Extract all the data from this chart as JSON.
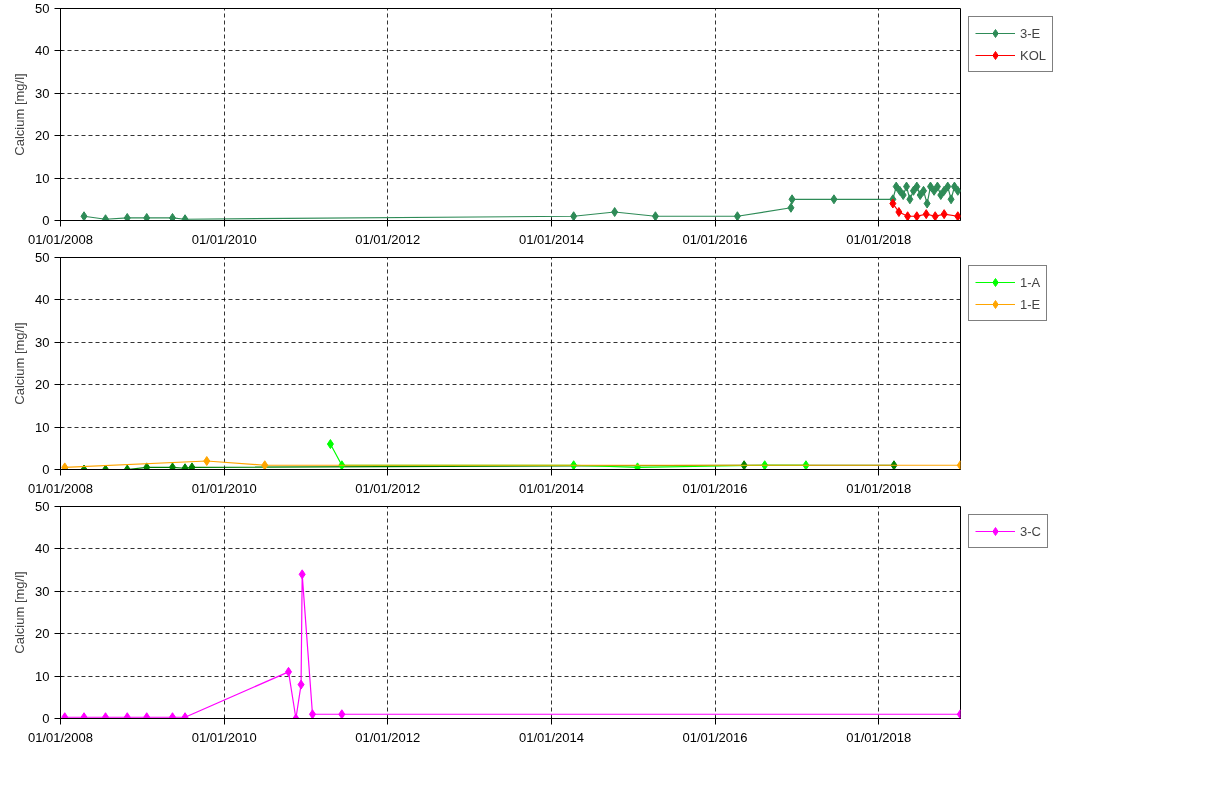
{
  "chart_data": [
    {
      "type": "line",
      "ylabel": "Calcium [mg/l]",
      "marker": "diamond",
      "grid": true,
      "legend": "right",
      "xlim": [
        "2008-01-01",
        "2019-01-01"
      ],
      "ylim": [
        0,
        50
      ],
      "yticks": [
        0,
        10,
        20,
        30,
        40,
        50
      ],
      "xticks": [
        {
          "value": "2008-01-01",
          "label": "01/01/2008"
        },
        {
          "value": "2010-01-01",
          "label": "01/01/2010"
        },
        {
          "value": "2012-01-01",
          "label": "01/01/2012"
        },
        {
          "value": "2014-01-01",
          "label": "01/01/2014"
        },
        {
          "value": "2016-01-01",
          "label": "01/01/2016"
        },
        {
          "value": "2018-01-01",
          "label": "01/01/2018"
        }
      ],
      "series": [
        {
          "name": "3-E",
          "color": "#2e8b57",
          "x": [
            "2008-04-15",
            "2008-07-20",
            "2008-10-25",
            "2009-01-20",
            "2009-05-15",
            "2009-07-10",
            "2014-04-10",
            "2014-10-10",
            "2015-04-10",
            "2016-04-10",
            "2016-12-05",
            "2016-12-10",
            "2017-06-15",
            "2018-03-05",
            "2018-03-20",
            "2018-04-05",
            "2018-04-20",
            "2018-05-05",
            "2018-05-20",
            "2018-06-05",
            "2018-06-20",
            "2018-07-05",
            "2018-07-20",
            "2018-08-05",
            "2018-08-20",
            "2018-09-05",
            "2018-09-20",
            "2018-10-05",
            "2018-10-20",
            "2018-11-05",
            "2018-11-20",
            "2018-12-05",
            "2018-12-20"
          ],
          "values": [
            1,
            0.3,
            0.6,
            0.6,
            0.6,
            0.3,
            1,
            2,
            1,
            1,
            3,
            5,
            5,
            5,
            8,
            7,
            6,
            8,
            5,
            7,
            8,
            6,
            7,
            4,
            8,
            7,
            8,
            6,
            7,
            8,
            5,
            8,
            7
          ]
        },
        {
          "name": "KOL",
          "color": "#ff0000",
          "x": [
            "2018-03-05",
            "2018-04-01",
            "2018-05-10",
            "2018-06-20",
            "2018-08-01",
            "2018-09-10",
            "2018-10-20",
            "2018-12-20"
          ],
          "values": [
            4,
            2,
            1,
            1,
            1.5,
            1,
            1.5,
            1
          ]
        }
      ]
    },
    {
      "type": "line",
      "ylabel": "Calcium [mg/l]",
      "marker": "diamond",
      "grid": true,
      "legend": "right",
      "xlim": [
        "2008-01-01",
        "2019-01-01"
      ],
      "ylim": [
        0,
        50
      ],
      "yticks": [
        0,
        10,
        20,
        30,
        40,
        50
      ],
      "xticks": [
        {
          "value": "2008-01-01",
          "label": "01/01/2008"
        },
        {
          "value": "2010-01-01",
          "label": "01/01/2010"
        },
        {
          "value": "2012-01-01",
          "label": "01/01/2012"
        },
        {
          "value": "2014-01-01",
          "label": "01/01/2014"
        },
        {
          "value": "2016-01-01",
          "label": "01/01/2016"
        },
        {
          "value": "2018-01-01",
          "label": "01/01/2018"
        }
      ],
      "series": [
        {
          "color": "#008000",
          "x": [
            "2008-01-20",
            "2008-04-15",
            "2008-07-20",
            "2008-10-25",
            "2009-01-20",
            "2009-05-15",
            "2009-07-10",
            "2009-08-10",
            "2016-05-10",
            "2018-03-10"
          ],
          "values": [
            0,
            0,
            0,
            0,
            0.5,
            0.5,
            0.3,
            0.5,
            1,
            1
          ]
        },
        {
          "name": "1-A",
          "color": "#00ff00",
          "x": [
            "2011-04-20",
            "2011-06-10",
            "2014-04-10",
            "2015-01-20",
            "2016-08-10",
            "2017-02-10"
          ],
          "values": [
            6,
            1,
            1,
            0.5,
            1,
            1
          ]
        },
        {
          "name": "1-E",
          "color": "#ffa500",
          "x": [
            "2008-01-20",
            "2009-10-15",
            "2010-07-01",
            "2018-12-31"
          ],
          "values": [
            0.5,
            2,
            1,
            1
          ]
        }
      ]
    },
    {
      "type": "line",
      "ylabel": "Calcium [mg/l]",
      "marker": "diamond",
      "grid": true,
      "legend": "right",
      "xlim": [
        "2008-01-01",
        "2019-01-01"
      ],
      "ylim": [
        0,
        50
      ],
      "yticks": [
        0,
        10,
        20,
        30,
        40,
        50
      ],
      "xticks": [
        {
          "value": "2008-01-01",
          "label": "01/01/2008"
        },
        {
          "value": "2010-01-01",
          "label": "01/01/2010"
        },
        {
          "value": "2012-01-01",
          "label": "01/01/2012"
        },
        {
          "value": "2014-01-01",
          "label": "01/01/2014"
        },
        {
          "value": "2016-01-01",
          "label": "01/01/2016"
        },
        {
          "value": "2018-01-01",
          "label": "01/01/2018"
        }
      ],
      "series": [
        {
          "name": "3-C",
          "color": "#ff00ff",
          "x": [
            "2008-01-20",
            "2008-04-15",
            "2008-07-20",
            "2008-10-25",
            "2009-01-20",
            "2009-05-15",
            "2009-07-10",
            "2010-10-15",
            "2010-11-17",
            "2010-12-10",
            "2010-12-15",
            "2011-01-30",
            "2011-06-10",
            "2018-12-31"
          ],
          "values": [
            0.3,
            0.3,
            0.3,
            0.3,
            0.3,
            0.3,
            0.3,
            11,
            0,
            8,
            34,
            1,
            1,
            1
          ]
        }
      ]
    }
  ]
}
